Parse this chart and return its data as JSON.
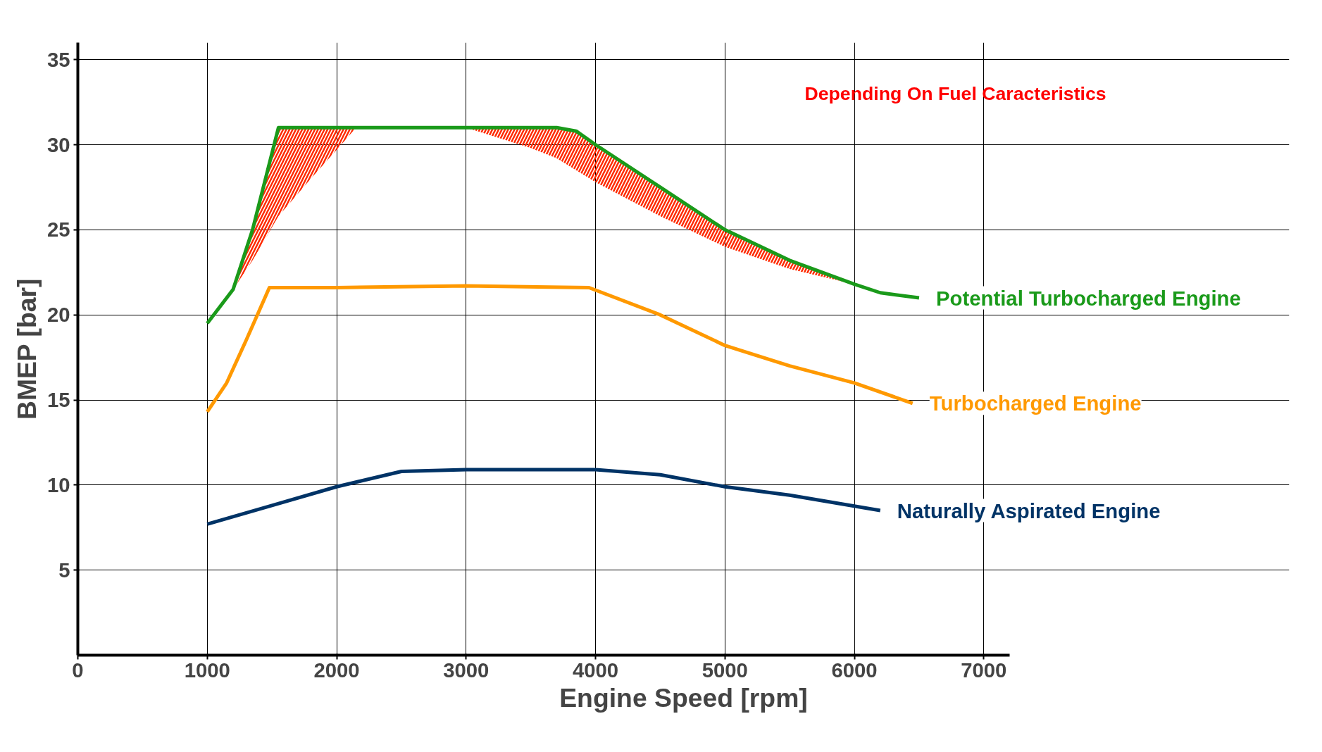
{
  "chart_data": {
    "type": "line",
    "xlabel": "Engine Speed [rpm]",
    "ylabel": "BMEP [bar]",
    "xlim": [
      0,
      7200
    ],
    "ylim": [
      0,
      36
    ],
    "xticks": [
      {
        "value": 0,
        "label": "0"
      },
      1000,
      2000,
      3000,
      4000,
      5000,
      6000,
      7000
    ],
    "yticks": [
      5,
      10,
      15,
      20,
      25,
      30,
      35
    ],
    "grid": true,
    "legend": false,
    "annotations": [
      "Depending On Fuel Caracteristics"
    ],
    "series": [
      {
        "name": "Potential Turbocharged Engine",
        "color": "#1a9a1a",
        "x": [
          1000,
          1200,
          1350,
          1450,
          1550,
          1800,
          2000,
          2150,
          2500,
          3000,
          3500,
          3700,
          3850,
          4000,
          4500,
          5000,
          5500,
          6000,
          6200,
          6500
        ],
        "values": [
          19.5,
          21.5,
          25,
          28,
          31,
          31,
          31,
          31,
          31,
          31,
          31,
          31,
          30.8,
          30,
          27.5,
          25,
          23.2,
          21.8,
          21.3,
          21
        ],
        "lower": [
          null,
          21.5,
          23.2,
          24.5,
          25.8,
          28,
          29.7,
          31,
          null,
          31,
          29.8,
          29.2,
          28.5,
          27.8,
          25.8,
          24,
          22.7,
          21.8,
          null,
          null
        ],
        "upper": [
          null,
          21.5,
          25,
          28,
          31,
          31,
          31,
          31,
          null,
          31,
          31,
          31,
          30.8,
          30,
          27.5,
          25,
          23.2,
          21.8,
          null,
          null
        ]
      },
      {
        "name": "Turbocharged Engine",
        "color": "#ff9900",
        "x": [
          1000,
          1150,
          1300,
          1480,
          2000,
          3000,
          3950,
          4500,
          5000,
          5500,
          6000,
          6450
        ],
        "values": [
          14.3,
          16,
          18.5,
          21.6,
          21.6,
          21.7,
          21.6,
          20,
          18.2,
          17,
          16,
          14.8
        ]
      },
      {
        "name": "Naturally Aspirated Engine",
        "color": "#003366",
        "x": [
          1000,
          1500,
          2000,
          2500,
          3000,
          4000,
          4500,
          5000,
          5500,
          6200
        ],
        "values": [
          7.7,
          8.8,
          9.9,
          10.8,
          10.9,
          10.9,
          10.6,
          9.9,
          9.4,
          8.5
        ]
      }
    ]
  }
}
